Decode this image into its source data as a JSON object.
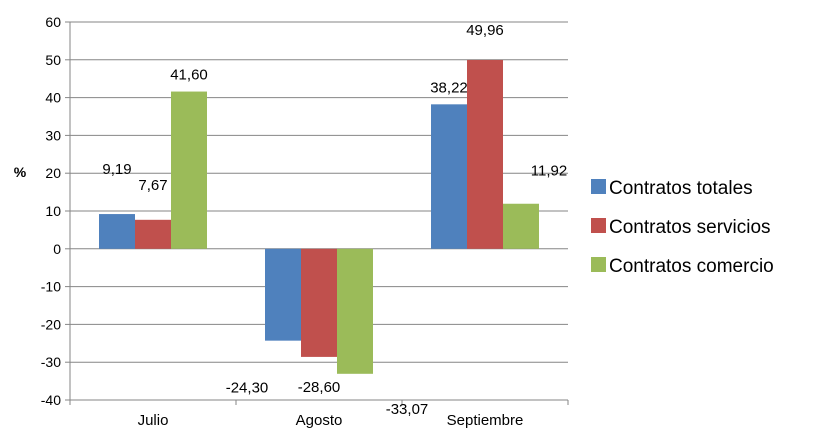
{
  "chart_data": {
    "type": "bar",
    "title": "",
    "xlabel": "",
    "ylabel": "%",
    "ylim": [
      -40,
      60
    ],
    "yticks": [
      "60",
      "50",
      "40",
      "30",
      "20",
      "10",
      "0",
      "-10",
      "-20",
      "-30",
      "-40"
    ],
    "grid": true,
    "legend_position": "right",
    "categories": [
      "Julio",
      "Agosto",
      "Septiembre"
    ],
    "series": [
      {
        "name": "Contratos totales",
        "color": "#4F81BD",
        "values": [
          9.19,
          -24.3,
          38.22
        ],
        "labels": [
          "9,19",
          "-24,30",
          "38,22"
        ]
      },
      {
        "name": "Contratos servicios",
        "color": "#C0504D",
        "values": [
          7.67,
          -28.6,
          49.96
        ],
        "labels": [
          "7,67",
          "-28,60",
          "49,96"
        ]
      },
      {
        "name": "Contratos comercio",
        "color": "#9BBB59",
        "values": [
          41.6,
          -33.07,
          11.92
        ],
        "labels": [
          "41,60",
          "-33,07",
          "11,92"
        ]
      }
    ]
  }
}
